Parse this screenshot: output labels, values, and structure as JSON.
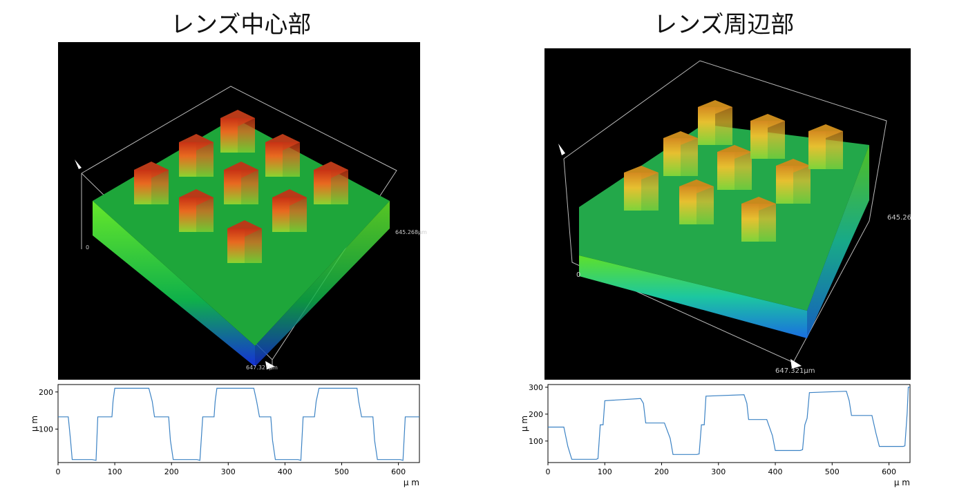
{
  "panels": [
    {
      "title": "レンズ中心部",
      "view3d": {
        "origin_label": "0",
        "x_extent_label": "647.321μm",
        "y_extent_label": "645.268μm"
      }
    },
    {
      "title": "レンズ周辺部",
      "view3d": {
        "origin_label": "0",
        "x_extent_label": "647.321μm",
        "y_extent_label": "645.26"
      }
    }
  ],
  "chart_data": [
    {
      "type": "line",
      "xlabel": "μ m",
      "ylabel": "μ m",
      "xlim": [
        0,
        637
      ],
      "ylim": [
        10,
        220
      ],
      "xticks": [
        0,
        100,
        200,
        300,
        400,
        500,
        600
      ],
      "yticks": [
        100,
        200
      ],
      "color": "#3b82c4",
      "series": [
        {
          "x": [
            0,
            18,
            22,
            25,
            60,
            67,
            70,
            95,
            97,
            100,
            160,
            166,
            170,
            195,
            198,
            203,
            245,
            250,
            255,
            275,
            277,
            280,
            345,
            350,
            355,
            375,
            378,
            383,
            423,
            428,
            432,
            452,
            455,
            460,
            527,
            530,
            535,
            555,
            558,
            563,
            603,
            608,
            612,
            637
          ],
          "y": [
            133,
            133,
            70,
            18,
            18,
            16,
            133,
            133,
            175,
            210,
            210,
            175,
            133,
            133,
            70,
            18,
            18,
            16,
            133,
            133,
            175,
            210,
            210,
            175,
            133,
            133,
            70,
            18,
            18,
            16,
            133,
            133,
            175,
            210,
            210,
            175,
            133,
            133,
            70,
            18,
            18,
            16,
            133,
            133
          ]
        }
      ]
    },
    {
      "type": "line",
      "xlabel": "μ m",
      "ylabel": "μ m",
      "xlim": [
        0,
        637
      ],
      "ylim": [
        20,
        310
      ],
      "xticks": [
        0,
        100,
        200,
        300,
        400,
        500,
        600
      ],
      "yticks": [
        100,
        200,
        300
      ],
      "color": "#3b82c4",
      "series": [
        {
          "x": [
            0,
            28,
            35,
            42,
            85,
            88,
            92,
            97,
            100,
            163,
            168,
            172,
            205,
            215,
            220,
            262,
            266,
            270,
            275,
            278,
            345,
            350,
            353,
            385,
            395,
            400,
            444,
            448,
            452,
            456,
            460,
            525,
            530,
            534,
            570,
            577,
            583,
            625,
            628,
            632,
            634,
            637
          ],
          "y": [
            152,
            152,
            80,
            32,
            32,
            35,
            160,
            160,
            250,
            258,
            240,
            167,
            167,
            110,
            50,
            50,
            52,
            160,
            160,
            267,
            272,
            240,
            180,
            180,
            120,
            65,
            65,
            68,
            160,
            185,
            280,
            285,
            250,
            195,
            195,
            130,
            80,
            80,
            82,
            205,
            300,
            300
          ]
        }
      ]
    }
  ]
}
